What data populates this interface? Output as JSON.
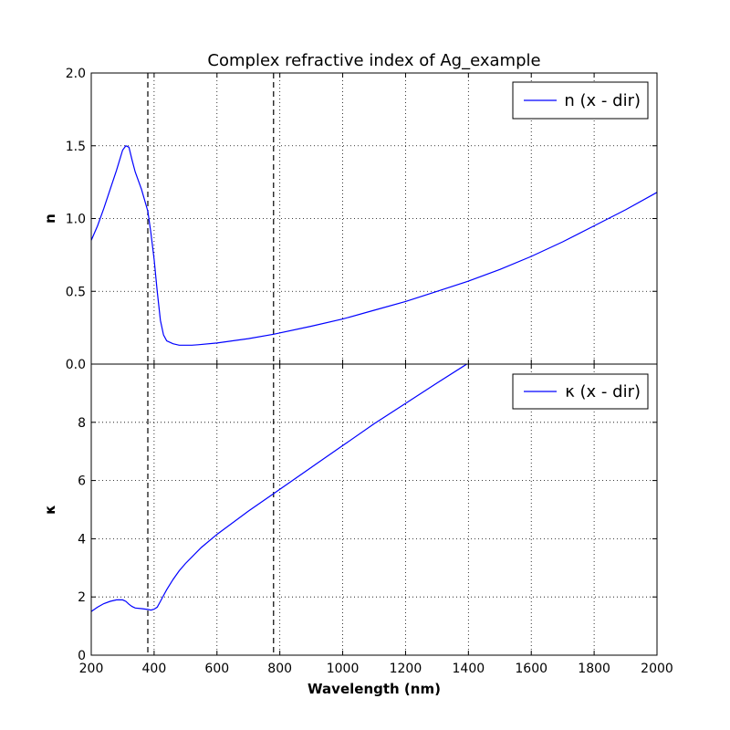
{
  "chart_data": {
    "type": "line",
    "title": "Complex refractive index of Ag_example",
    "xlabel": "Wavelength (nm)",
    "xlim": [
      200,
      2000
    ],
    "x_ticks": [
      "200",
      "400",
      "600",
      "800",
      "1000",
      "1200",
      "1400",
      "1600",
      "1800",
      "2000"
    ],
    "grid": true,
    "vertical_lines": [
      380,
      780
    ],
    "line_color": "#0000ff",
    "panels": [
      {
        "ylabel": "n",
        "ylim": [
          0,
          2.0
        ],
        "y_ticks": [
          "0.0",
          "0.5",
          "1.0",
          "1.5",
          "2.0"
        ],
        "legend": "top-right",
        "series": [
          {
            "name": "n (x - dir)",
            "x": [
              200,
              220,
              240,
              260,
              280,
              300,
              310,
              320,
              330,
              340,
              360,
              380,
              390,
              400,
              410,
              420,
              430,
              440,
              460,
              480,
              500,
              520,
              540,
              600,
              700,
              780,
              900,
              1000,
              1100,
              1200,
              1300,
              1400,
              1500,
              1600,
              1700,
              1800,
              1900,
              2000
            ],
            "y": [
              0.85,
              0.95,
              1.07,
              1.2,
              1.33,
              1.47,
              1.5,
              1.49,
              1.4,
              1.32,
              1.2,
              1.05,
              0.9,
              0.72,
              0.5,
              0.3,
              0.2,
              0.16,
              0.14,
              0.13,
              0.13,
              0.13,
              0.133,
              0.145,
              0.175,
              0.205,
              0.26,
              0.31,
              0.37,
              0.43,
              0.5,
              0.57,
              0.65,
              0.74,
              0.84,
              0.95,
              1.06,
              1.18
            ]
          }
        ]
      },
      {
        "ylabel": "κ",
        "ylim": [
          0,
          10
        ],
        "y_ticks": [
          "0",
          "2",
          "4",
          "6",
          "8"
        ],
        "legend": "top-right",
        "series": [
          {
            "name": "κ (x - dir)",
            "x": [
              200,
              220,
              240,
              260,
              280,
              300,
              310,
              320,
              330,
              340,
              360,
              380,
              390,
              400,
              410,
              420,
              430,
              440,
              460,
              480,
              500,
              550,
              600,
              700,
              780,
              900,
              1000,
              1100,
              1200,
              1300,
              1395
            ],
            "y": [
              1.5,
              1.65,
              1.77,
              1.85,
              1.9,
              1.9,
              1.85,
              1.75,
              1.67,
              1.62,
              1.6,
              1.57,
              1.55,
              1.58,
              1.65,
              1.85,
              2.05,
              2.25,
              2.6,
              2.9,
              3.15,
              3.7,
              4.15,
              4.95,
              5.55,
              6.45,
              7.2,
              7.95,
              8.65,
              9.35,
              10.0
            ]
          }
        ]
      }
    ]
  }
}
